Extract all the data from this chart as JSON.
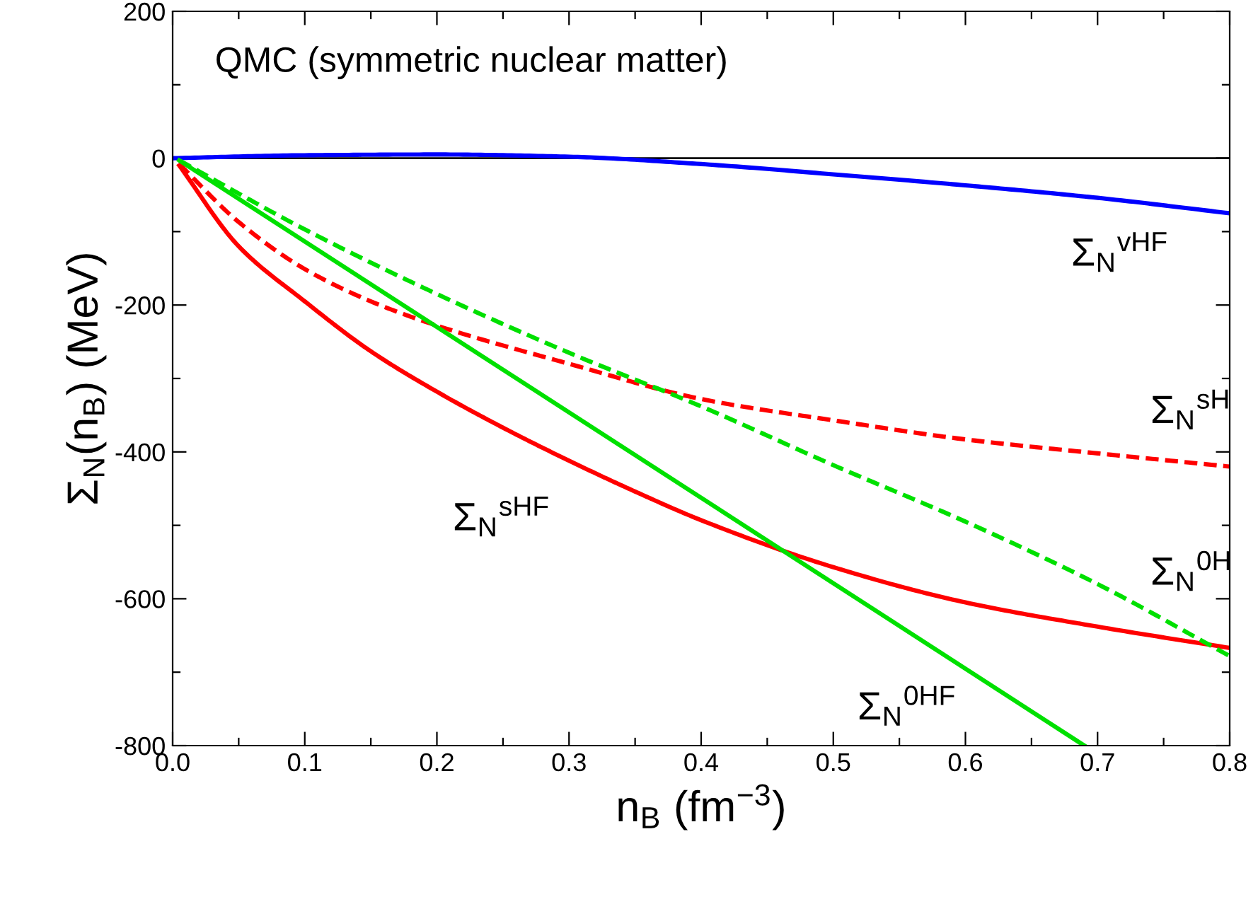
{
  "chart_data": {
    "type": "line",
    "xlabel": "n$_{B}$ (fm$^{−3}$)",
    "ylabel": "Σ$_{N}$(n$_{B}$) (MeV)",
    "xlim": [
      0,
      0.8
    ],
    "ylim": [
      -800,
      200
    ],
    "xticks": [
      {
        "value": 0,
        "label": "0.0"
      },
      {
        "value": 0.05,
        "label": null
      },
      {
        "value": 0.1,
        "label": "0.1"
      },
      {
        "value": 0.15,
        "label": null
      },
      {
        "value": 0.2,
        "label": "0.2"
      },
      {
        "value": 0.25,
        "label": null
      },
      {
        "value": 0.3,
        "label": "0.3"
      },
      {
        "value": 0.35,
        "label": null
      },
      {
        "value": 0.4,
        "label": "0.4"
      },
      {
        "value": 0.45,
        "label": null
      },
      {
        "value": 0.5,
        "label": "0.5"
      },
      {
        "value": 0.55,
        "label": null
      },
      {
        "value": 0.6,
        "label": "0.6"
      },
      {
        "value": 0.65,
        "label": null
      },
      {
        "value": 0.7,
        "label": "0.7"
      },
      {
        "value": 0.75,
        "label": null
      },
      {
        "value": 0.8,
        "label": "0.8"
      }
    ],
    "yticks": [
      -800,
      {
        "value": -700,
        "label": null
      },
      -600,
      {
        "value": -500,
        "label": null
      },
      -400,
      {
        "value": -300,
        "label": null
      },
      -200,
      {
        "value": -100,
        "label": null
      },
      0,
      {
        "value": 100,
        "label": null
      },
      200
    ],
    "grid": false,
    "legend": false,
    "marker": "none",
    "ref_lines": [
      {
        "axis": "y",
        "value": 0,
        "color": "#000000",
        "line_style": "solid"
      }
    ],
    "series": [
      {
        "name": "Σ$_{N}$$^{vHF}$",
        "color": "#0000ff",
        "line_style": "solid",
        "x": [
          0,
          0.1,
          0.2,
          0.3,
          0.4,
          0.5,
          0.6,
          0.7,
          0.8
        ],
        "values": [
          0,
          4,
          5,
          2,
          -8,
          -22,
          -37,
          -54,
          -75
        ]
      },
      {
        "name": "Σ$_{N}$$^{sHF}$",
        "color": "#ff0000",
        "line_style": "solid",
        "x": [
          0.005,
          0.05,
          0.1,
          0.15,
          0.2,
          0.25,
          0.3,
          0.35,
          0.4,
          0.5,
          0.6,
          0.7,
          0.8
        ],
        "values": [
          -10,
          -120,
          -195,
          -263,
          -318,
          -367,
          -412,
          -454,
          -493,
          -557,
          -605,
          -638,
          -667
        ]
      },
      {
        "name": "Σ$_{N}$$^{sH}$",
        "color": "#ff0000",
        "line_style": "dashed",
        "x": [
          0.005,
          0.05,
          0.1,
          0.15,
          0.2,
          0.3,
          0.4,
          0.5,
          0.6,
          0.7,
          0.8
        ],
        "values": [
          -8,
          -87,
          -151,
          -195,
          -228,
          -280,
          -328,
          -357,
          -383,
          -402,
          -420
        ]
      },
      {
        "name": "Σ$_{N}$$^{0HF}$",
        "color": "#00e000",
        "line_style": "solid",
        "x": [
          0.005,
          0.69
        ],
        "values": [
          -3,
          -800
        ]
      },
      {
        "name": "Σ$_{N}$$^{0H}$",
        "color": "#00e000",
        "line_style": "dashed",
        "x": [
          0.005,
          0.1,
          0.2,
          0.3,
          0.4,
          0.5,
          0.6,
          0.7,
          0.8
        ],
        "values": [
          -3,
          -97,
          -185,
          -265,
          -338,
          -418,
          -495,
          -580,
          -678
        ]
      }
    ],
    "annotations": [
      "QMC (symmetric nuclear matter)"
    ]
  }
}
